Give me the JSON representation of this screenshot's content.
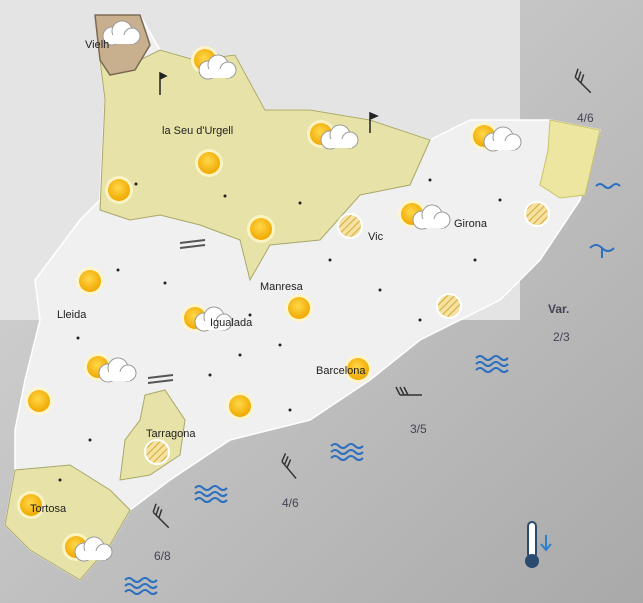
{
  "cities": [
    "Vielh",
    "la Seu d'Urgell",
    "Lleida",
    "Manresa",
    "Igualada",
    "Vic",
    "Girona",
    "Barcelona",
    "Tarragona",
    "Tortosa"
  ],
  "sea_labels": [
    "4/6",
    "Var.",
    "2/3",
    "3/5",
    "4/6",
    "6/8"
  ]
}
